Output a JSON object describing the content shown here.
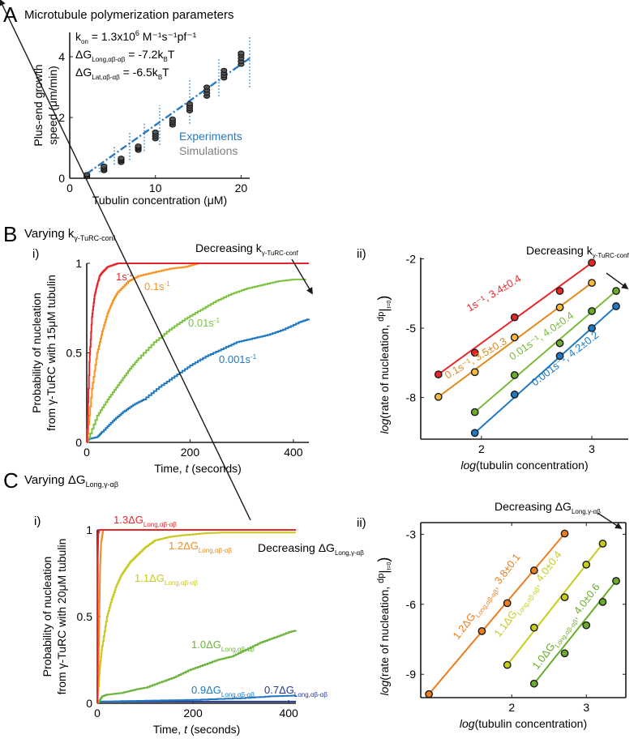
{
  "panels": {
    "A": {
      "letter": "A",
      "title": "Microtubule polymerization parameters"
    },
    "B": {
      "letter": "B",
      "title_main": "Varying k",
      "title_sub": "γ-TuRC-conf",
      "sub_i": "i)",
      "sub_ii": "ii)"
    },
    "C": {
      "letter": "C",
      "title_main": "Varying ΔG",
      "title_sub": "Long,γ-αβ",
      "sub_i": "i)",
      "sub_ii": "ii)"
    }
  },
  "chart_data": [
    {
      "id": "A",
      "type": "scatter",
      "title": "Microtubule polymerization parameters",
      "xlabel": "Tubulin concentration (μM)",
      "ylabel_line1": "Plus-end growth",
      "ylabel_line2": "speed (μm/min)",
      "xlim": [
        0,
        21
      ],
      "ylim": [
        0,
        4.8
      ],
      "xticks": [
        0,
        10,
        20
      ],
      "yticks": [
        0,
        2,
        4
      ],
      "annotations": [
        {
          "main": "k",
          "sub": "on",
          "rest": " = 1.3x10",
          "sup": "6",
          "tail": " M⁻¹s⁻¹pf⁻¹"
        },
        {
          "main": "ΔG",
          "sub": "Long,αβ-αβ",
          "rest": " = -7.2k",
          "sub2": "B",
          "tail": "T"
        },
        {
          "main": "ΔG",
          "sub": "Lat,αβ-αβ",
          "rest": "   = -6.5k",
          "sub2": "B",
          "tail": "T"
        }
      ],
      "legend": [
        {
          "label": "Experiments",
          "color": "#2a7ac0"
        },
        {
          "label": "Simulations",
          "color": "#808080"
        }
      ],
      "legend_position": "bottom-right",
      "fit_line": {
        "x": [
          2,
          21
        ],
        "y": [
          0.15,
          3.95
        ],
        "color": "#2a7ac0",
        "style": "dash-dot"
      },
      "experiments_error_bars": [
        {
          "x": 3.5,
          "low": 0.2,
          "high": 0.5
        },
        {
          "x": 5.2,
          "low": 0.45,
          "high": 1.05
        },
        {
          "x": 7.0,
          "low": 0.6,
          "high": 1.55
        },
        {
          "x": 8.7,
          "low": 0.9,
          "high": 1.85
        },
        {
          "x": 10.5,
          "low": 1.1,
          "high": 2.4
        },
        {
          "x": 14.0,
          "low": 1.8,
          "high": 3.3
        },
        {
          "x": 17.4,
          "low": 2.7,
          "high": 3.95
        },
        {
          "x": 21.0,
          "low": 3.0,
          "high": 4.65
        }
      ],
      "simulations": [
        {
          "x": 2,
          "y": [
            0.05,
            0.1,
            0.12
          ]
        },
        {
          "x": 4,
          "y": [
            0.25,
            0.3,
            0.35,
            0.4
          ]
        },
        {
          "x": 6,
          "y": [
            0.52,
            0.58,
            0.62,
            0.66
          ]
        },
        {
          "x": 8,
          "y": [
            0.92,
            0.98,
            1.02,
            1.06
          ]
        },
        {
          "x": 10,
          "y": [
            1.3,
            1.38,
            1.45,
            1.52
          ]
        },
        {
          "x": 12,
          "y": [
            1.75,
            1.82,
            1.88,
            1.95
          ]
        },
        {
          "x": 14,
          "y": [
            2.22,
            2.3,
            2.38,
            2.45
          ]
        },
        {
          "x": 16,
          "y": [
            2.7,
            2.8,
            2.9,
            3.0
          ]
        },
        {
          "x": 18,
          "y": [
            3.3,
            3.38,
            3.46,
            3.55
          ]
        },
        {
          "x": 20,
          "y": [
            3.75,
            3.85,
            3.95,
            4.05,
            4.12
          ]
        }
      ]
    },
    {
      "id": "Bi",
      "type": "line",
      "xlabel_main": "Time, ",
      "xlabel_italic": "t",
      "xlabel_tail": " (seconds)",
      "ylabel_line1": "Probability of nucleation",
      "ylabel_line2": "from γ-TuRC with 15μM tubulin",
      "xlim": [
        0,
        430
      ],
      "ylim": [
        0,
        1
      ],
      "xticks": [
        0,
        200,
        400
      ],
      "yticks": [
        0,
        0.5,
        1
      ],
      "annotation": {
        "main": "Decreasing k",
        "sub": "γ-TuRC-conf"
      },
      "series": [
        {
          "name": "1s⁻¹",
          "color": "#e8262a",
          "x": [
            0,
            5,
            10,
            15,
            20,
            25,
            30,
            40,
            50,
            60,
            90,
            430
          ],
          "y": [
            0,
            0.45,
            0.7,
            0.82,
            0.88,
            0.93,
            0.95,
            0.98,
            0.99,
            1.0,
            1.0,
            1.0
          ]
        },
        {
          "name": "0.1s⁻¹",
          "color": "#f7931e",
          "x": [
            0,
            10,
            20,
            30,
            40,
            50,
            60,
            80,
            100,
            130,
            160,
            190,
            215,
            430
          ],
          "y": [
            0,
            0.3,
            0.5,
            0.62,
            0.72,
            0.79,
            0.84,
            0.9,
            0.93,
            0.95,
            0.97,
            0.98,
            1.0,
            1.0
          ]
        },
        {
          "name": "0.01s⁻¹",
          "color": "#7dc242",
          "x": [
            0,
            20,
            40,
            60,
            80,
            100,
            130,
            160,
            190,
            220,
            250,
            280,
            310,
            340,
            370,
            400,
            425
          ],
          "y": [
            0,
            0.15,
            0.24,
            0.32,
            0.4,
            0.47,
            0.56,
            0.63,
            0.69,
            0.74,
            0.79,
            0.83,
            0.86,
            0.88,
            0.9,
            0.91,
            0.91
          ]
        },
        {
          "name": "0.001s⁻¹",
          "color": "#1f78c1",
          "x": [
            0,
            5,
            20,
            30,
            50,
            70,
            90,
            110,
            140,
            170,
            200,
            230,
            260,
            290,
            320,
            350,
            380,
            410,
            430
          ],
          "y": [
            0,
            0.02,
            0.03,
            0.06,
            0.12,
            0.17,
            0.21,
            0.24,
            0.31,
            0.37,
            0.43,
            0.48,
            0.52,
            0.56,
            0.58,
            0.6,
            0.63,
            0.67,
            0.69
          ]
        }
      ]
    },
    {
      "id": "Bii",
      "type": "scatter",
      "xlabel_italic": "log",
      "xlabel_tail": "(tubulin concentration)",
      "ylabel_italic": "log",
      "ylabel_tail": "(rate of nucleation, ",
      "ylabel_frac_num": "dp",
      "ylabel_frac_den": "dt",
      "ylabel_eval": "t=0",
      "xlim": [
        1.45,
        3.33
      ],
      "ylim": [
        -9.8,
        -1.95
      ],
      "xticks": [
        2,
        3
      ],
      "yticks": [
        -8,
        -5,
        -2
      ],
      "annotation": {
        "main": "Decreasing k",
        "sub": "γ-TuRC-conf"
      },
      "series": [
        {
          "name": "1s⁻¹, 3.4±0.4",
          "color": "#e8262a",
          "marker": "#e8262a",
          "x": [
            1.61,
            1.94,
            2.3,
            2.71,
            3.0
          ],
          "y": [
            -7.0,
            -6.06,
            -4.53,
            -3.39,
            -2.17
          ]
        },
        {
          "name": "0.1s⁻¹, 3.5±0.3",
          "color": "#e08a1e",
          "marker": "#f6b93b",
          "x": [
            1.61,
            1.94,
            2.3,
            2.71,
            3.0
          ],
          "y": [
            -7.97,
            -6.9,
            -5.4,
            -4.1,
            -3.04
          ]
        },
        {
          "name": "0.01s⁻¹, 4.0±0.4",
          "color": "#7aba3a",
          "marker": "#6aab2e",
          "x": [
            1.94,
            2.3,
            2.71,
            3.0,
            3.22
          ],
          "y": [
            -8.63,
            -7.03,
            -5.65,
            -4.26,
            -3.39
          ]
        },
        {
          "name": "0.001s⁻¹, 4.2±0.2",
          "color": "#1f78c1",
          "marker": "#1f78c1",
          "x": [
            1.94,
            2.3,
            2.71,
            3.0,
            3.22
          ],
          "y": [
            -9.53,
            -7.87,
            -6.2,
            -5.0,
            -4.05
          ]
        }
      ]
    },
    {
      "id": "Ci",
      "type": "line",
      "xlabel_main": "Time, ",
      "xlabel_italic": "t",
      "xlabel_tail": " (seconds)",
      "ylabel_line1": "Probability of nucleation",
      "ylabel_line2": "from γ-TuRC with 20μM tubulin",
      "xlim": [
        0,
        415
      ],
      "ylim": [
        0,
        1
      ],
      "xticks": [
        0,
        200,
        400
      ],
      "yticks": [
        0,
        0.5,
        1
      ],
      "annotation": {
        "main": "Decreasing ΔG",
        "sub": "Long,γ-αβ"
      },
      "series": [
        {
          "name": "1.3ΔG",
          "sub": "Long,αβ-αβ",
          "color": "#e8262a",
          "x": [
            0,
            1,
            2,
            4,
            415
          ],
          "y": [
            0,
            0.85,
            0.98,
            1.0,
            1.0
          ]
        },
        {
          "name": "1.2ΔG",
          "sub": "Long,αβ-αβ",
          "color": "#f08a24",
          "x": [
            0,
            2,
            4,
            6,
            8,
            12,
            415
          ],
          "y": [
            0,
            0.15,
            0.5,
            0.8,
            0.93,
            1.0,
            1.0
          ]
        },
        {
          "name": "1.1ΔG",
          "sub": "Long,αβ-αβ",
          "color": "#c8c81e",
          "x": [
            0,
            5,
            10,
            20,
            30,
            40,
            50,
            60,
            70,
            85,
            100,
            120,
            150,
            180,
            220,
            260,
            415
          ],
          "y": [
            0,
            0.2,
            0.33,
            0.5,
            0.6,
            0.68,
            0.74,
            0.78,
            0.82,
            0.86,
            0.9,
            0.94,
            0.96,
            0.97,
            0.98,
            0.985,
            0.985
          ]
        },
        {
          "name": "1.0ΔG",
          "sub": "Long,αβ-αβ",
          "color": "#6db33f",
          "x": [
            0,
            10,
            20,
            50,
            80,
            100,
            130,
            160,
            190,
            220,
            250,
            280,
            310,
            340,
            370,
            400,
            415
          ],
          "y": [
            0,
            0.04,
            0.05,
            0.06,
            0.08,
            0.09,
            0.12,
            0.15,
            0.19,
            0.22,
            0.25,
            0.27,
            0.31,
            0.35,
            0.38,
            0.41,
            0.42
          ]
        },
        {
          "name": "0.9ΔG",
          "sub": "Long,αβ-αβ",
          "color": "#1f78c1",
          "x": [
            0,
            100,
            200,
            300,
            360,
            415
          ],
          "y": [
            0.01,
            0.015,
            0.02,
            0.03,
            0.04,
            0.045
          ]
        },
        {
          "name": "0.7ΔG",
          "sub": "Long,αβ-αβ",
          "color": "#273a93",
          "x": [
            0,
            415
          ],
          "y": [
            0.01,
            0.01
          ]
        }
      ]
    },
    {
      "id": "Cii",
      "type": "scatter",
      "xlabel_italic": "log",
      "xlabel_tail": "(tubulin concentration)",
      "ylabel_italic": "log",
      "ylabel_tail": "(rate of nucleation, ",
      "ylabel_frac_num": "dp",
      "ylabel_frac_den": "dt",
      "ylabel_eval": "t=0",
      "xlim": [
        0.78,
        3.53
      ],
      "ylim": [
        -10.0,
        -2.5
      ],
      "xticks": [
        2,
        3
      ],
      "yticks": [
        -9,
        -6,
        -3
      ],
      "annotation": {
        "main": "Decreasing ΔG",
        "sub": "Long,γ-αβ"
      },
      "series": [
        {
          "name": "1.2ΔG",
          "sub": "Long,αβ-αβ",
          "fit": ", 3.8±0.1",
          "color": "#ee7d1f",
          "marker": "#ee7d1f",
          "x": [
            0.89,
            1.6,
            1.94,
            2.3,
            2.71
          ],
          "y": [
            -9.85,
            -7.15,
            -5.95,
            -4.55,
            -2.97
          ]
        },
        {
          "name": "1.1ΔG",
          "sub": "Long,αβ-αβ",
          "fit": ", 4.0±0.4",
          "color": "#c5cc1a",
          "marker": "#c5cc1a",
          "x": [
            1.94,
            2.3,
            2.71,
            3.0,
            3.22
          ],
          "y": [
            -8.6,
            -7.0,
            -5.7,
            -4.3,
            -3.4
          ]
        },
        {
          "name": "1.0ΔG",
          "sub": "Long,αβ-αβ",
          "fit": ", 4.0±0.6",
          "color": "#6aab2e",
          "marker": "#6aab2e",
          "x": [
            2.3,
            2.71,
            3.0,
            3.22,
            3.4
          ],
          "y": [
            -9.4,
            -8.1,
            -6.9,
            -5.9,
            -5.0
          ]
        }
      ]
    }
  ]
}
